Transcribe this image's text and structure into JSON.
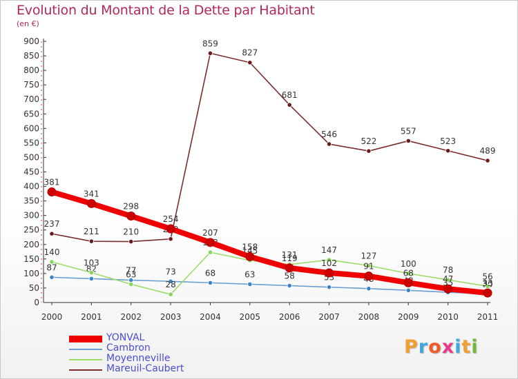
{
  "page": {
    "title": "Evolution du Montant de la Dette par Habitant",
    "subtitle": "(en €)"
  },
  "logo": {
    "text": "Proxiti",
    "letter_colors": [
      "#f0a030",
      "#3da9e0",
      "#f05a28",
      "#e83a8c",
      "#3da9e0",
      "#f0a030",
      "#70b83a"
    ]
  },
  "chart_data": {
    "type": "line",
    "title": "Evolution du Montant de la Dette par Habitant",
    "subtitle": "(en €)",
    "x": [
      2000,
      2001,
      2002,
      2003,
      2004,
      2005,
      2006,
      2007,
      2008,
      2009,
      2010,
      2011
    ],
    "ylim": [
      0,
      900
    ],
    "yticks": [
      0,
      50,
      100,
      150,
      200,
      250,
      300,
      350,
      400,
      450,
      500,
      550,
      600,
      650,
      700,
      750,
      800,
      850,
      900
    ],
    "grid": false,
    "legend_position": "bottom-left",
    "series": [
      {
        "name": "YONVAL",
        "color": "#ee0000",
        "marker": "#cc0000",
        "emphasis": true,
        "values": [
          381,
          341,
          298,
          254,
          207,
          158,
          119,
          102,
          91,
          68,
          47,
          33
        ]
      },
      {
        "name": "Cambron",
        "color": "#6a9ed2",
        "marker": "#3b82c6",
        "emphasis": false,
        "values": [
          87,
          82,
          77,
          73,
          68,
          63,
          58,
          53,
          48,
          42,
          35,
          30
        ]
      },
      {
        "name": "Moyenneville",
        "color": "#99dd66",
        "marker": "#88d55a",
        "emphasis": false,
        "values": [
          140,
          103,
          63,
          28,
          173,
          145,
          131,
          147,
          127,
          100,
          78,
          56
        ]
      },
      {
        "name": "Mareuil-Caubert",
        "color": "#7a2c2c",
        "marker": "#6a1a1a",
        "emphasis": false,
        "values": [
          237,
          211,
          210,
          219,
          859,
          827,
          681,
          546,
          522,
          557,
          523,
          489
        ]
      }
    ]
  }
}
